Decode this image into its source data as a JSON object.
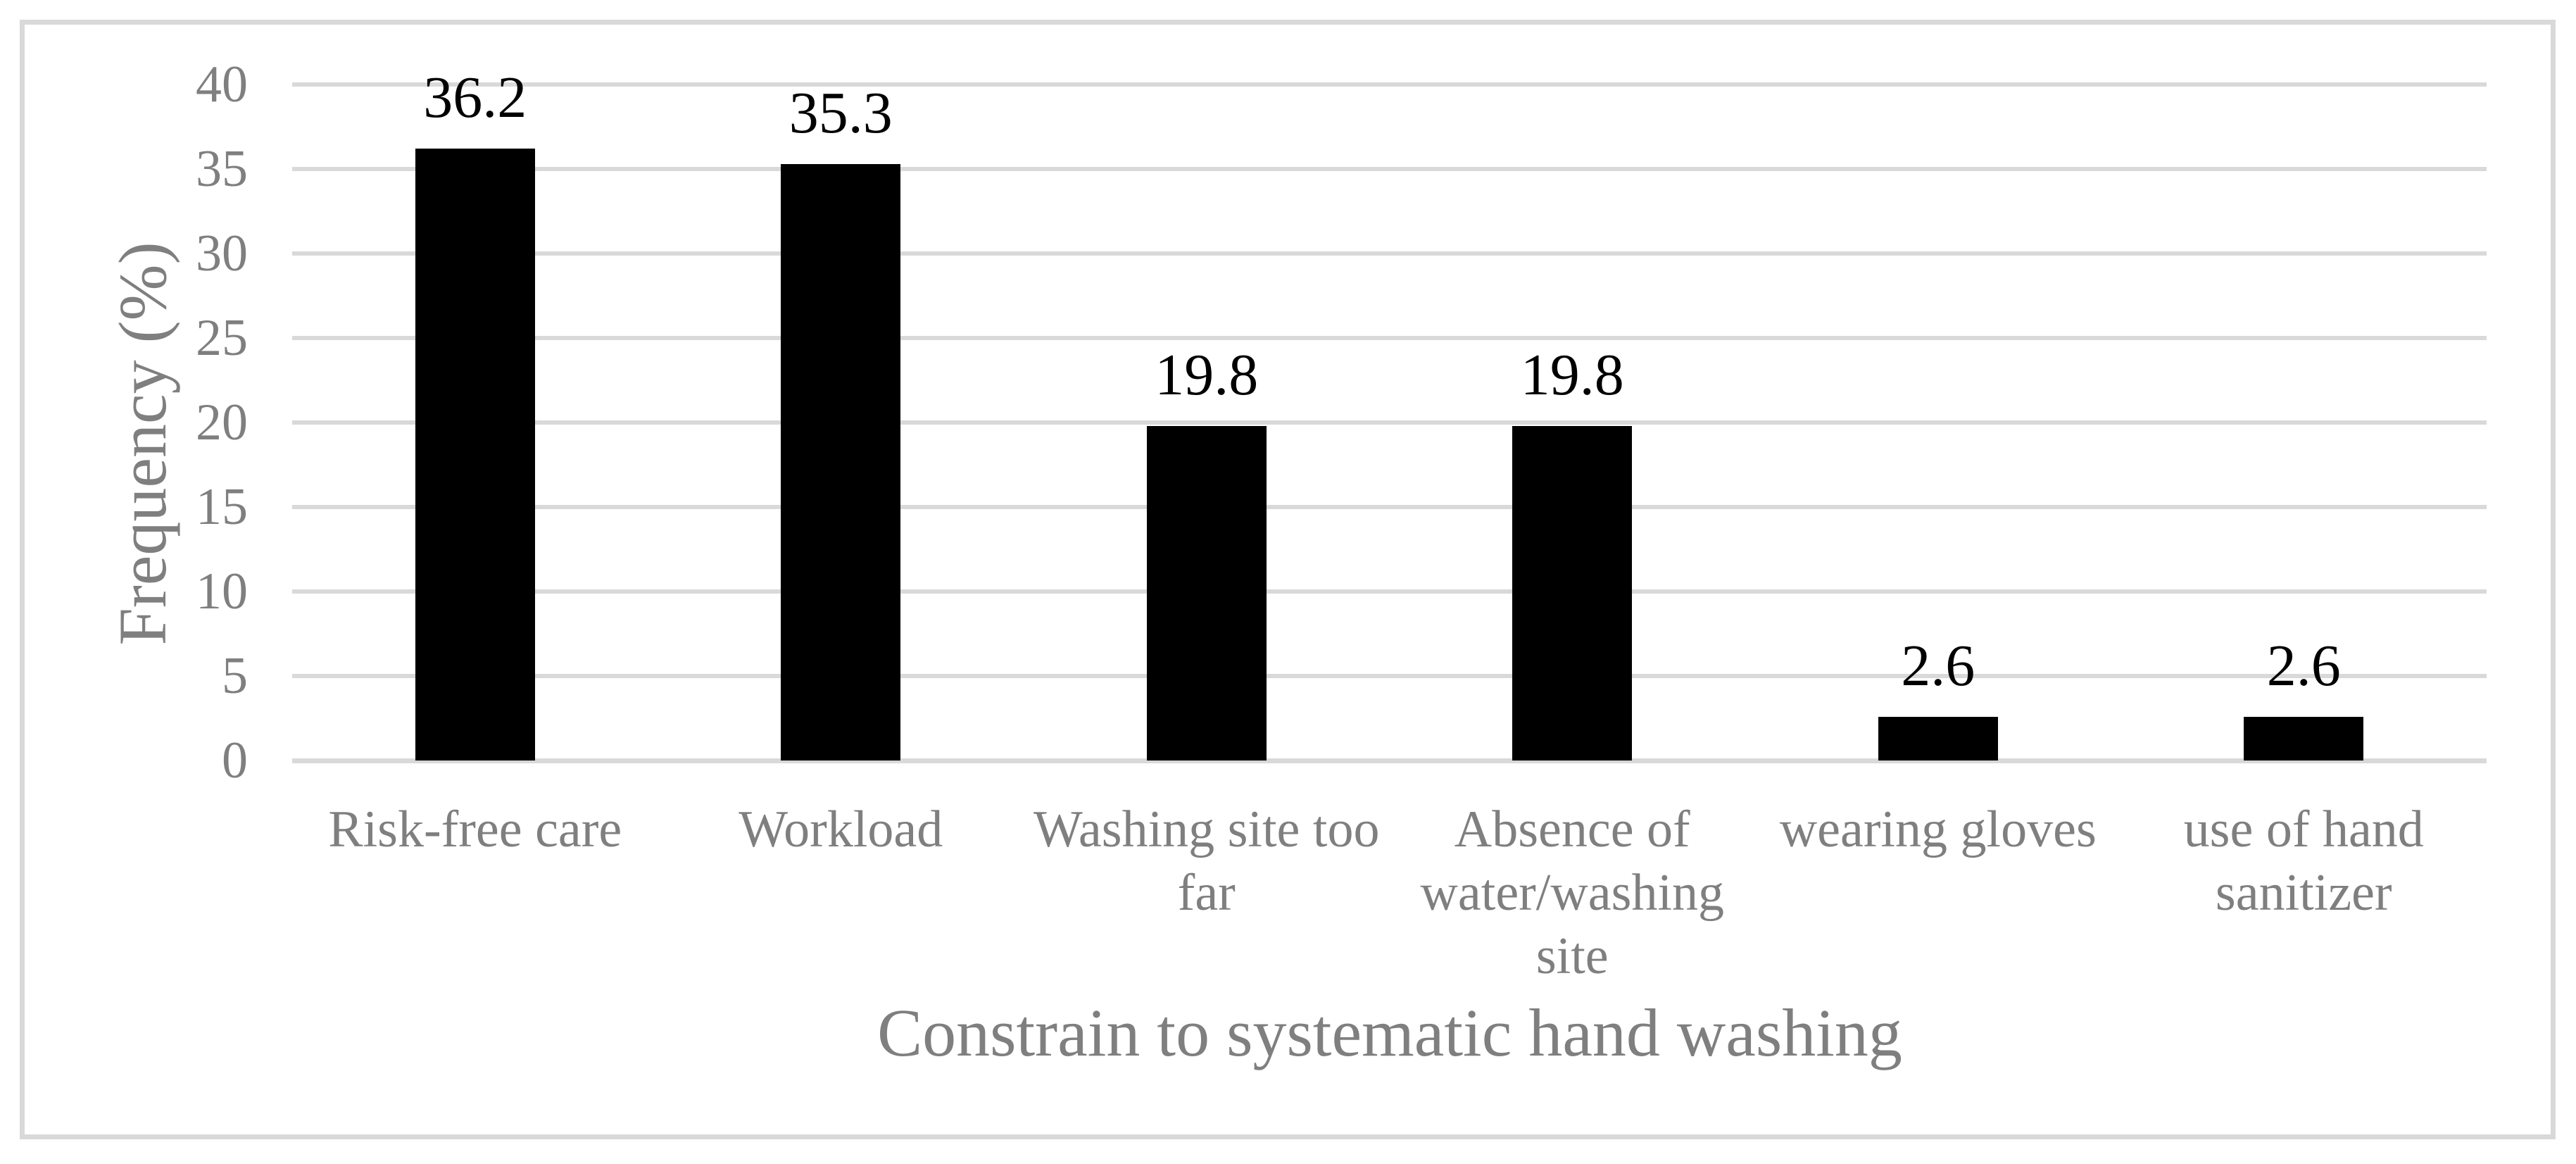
{
  "figure": {
    "background_color": "#ffffff",
    "frame_color": "#d9d9d9",
    "gridline_color": "#d9d9d9",
    "text_color": "#7f7f7f",
    "bar_color": "#000000",
    "data_label_color": "#000000"
  },
  "chart_data": {
    "type": "bar",
    "title": "",
    "xlabel": "Constrain to systematic hand washing",
    "ylabel": "Frequency (%)",
    "categories": [
      "Risk-free care",
      "Workload",
      "Washing site too\nfar",
      "Absence of\nwater/washing\nsite",
      "wearing gloves",
      "use of hand\nsanitizer"
    ],
    "values": [
      36.2,
      35.3,
      19.8,
      19.8,
      2.6,
      2.6
    ],
    "data_labels": [
      "36.2",
      "35.3",
      "19.8",
      "19.8",
      "2.6",
      "2.6"
    ],
    "ylim": [
      0,
      40
    ],
    "ytick_step": 5,
    "yticks": [
      "40",
      "35",
      "30",
      "25",
      "20",
      "15",
      "10",
      "5",
      "0"
    ],
    "grid": "horizontal",
    "legend": "none"
  }
}
